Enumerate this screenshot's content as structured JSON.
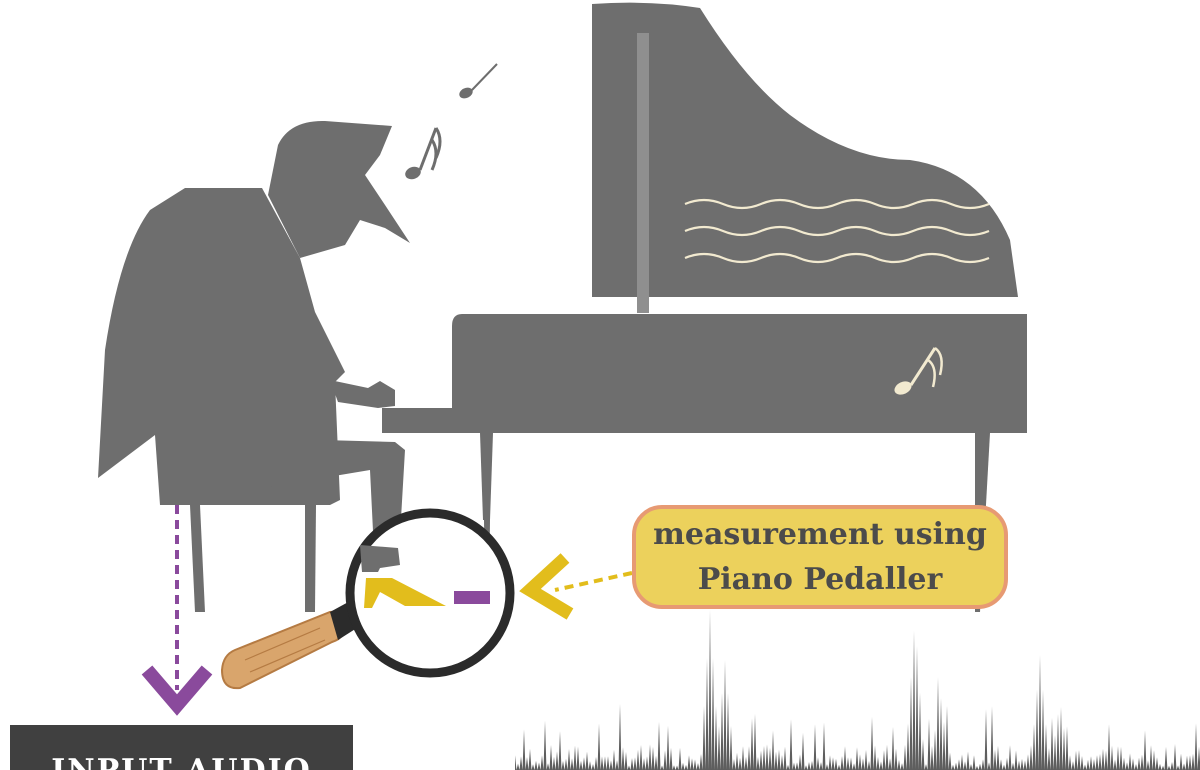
{
  "callout": {
    "line1": "measurement using",
    "line2": "Piano Pedaller"
  },
  "input_box": {
    "label": "INPUT AUDIO"
  },
  "colors": {
    "silhouette": "#6e6e6e",
    "callout_fill": "#ecd15c",
    "callout_border": "#e79a73",
    "accent_purple": "#8a4a9c",
    "accent_yellow": "#e2bd1c",
    "lens_ring": "#2b2b2b",
    "handle_wood": "#d9a56c",
    "waveform": "#5e5e5e",
    "note_cream": "#f2ead0"
  }
}
